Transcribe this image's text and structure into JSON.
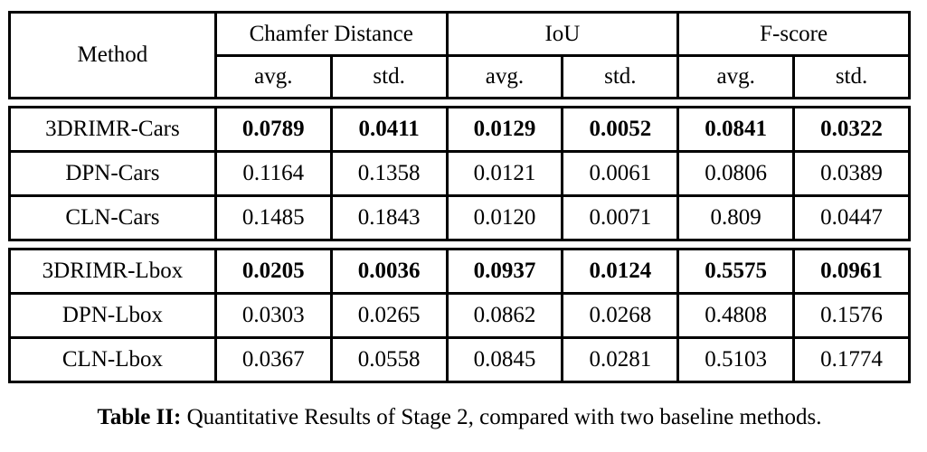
{
  "table": {
    "header": {
      "method_label": "Method",
      "groups": [
        {
          "label": "Chamfer Distance"
        },
        {
          "label": "IoU"
        },
        {
          "label": "F-score"
        }
      ],
      "sub_labels": [
        "avg.",
        "std.",
        "avg.",
        "std.",
        "avg.",
        "std."
      ]
    },
    "groups": [
      {
        "rows": [
          {
            "method": "3DRIMR-Cars",
            "emphasis": true,
            "values": [
              "0.0789",
              "0.0411",
              "0.0129",
              "0.0052",
              "0.0841",
              "0.0322"
            ]
          },
          {
            "method": "DPN-Cars",
            "emphasis": false,
            "values": [
              "0.1164",
              "0.1358",
              "0.0121",
              "0.0061",
              "0.0806",
              "0.0389"
            ]
          },
          {
            "method": "CLN-Cars",
            "emphasis": false,
            "values": [
              "0.1485",
              "0.1843",
              "0.0120",
              "0.0071",
              "0.809",
              "0.0447"
            ]
          }
        ]
      },
      {
        "rows": [
          {
            "method": "3DRIMR-Lbox",
            "emphasis": true,
            "values": [
              "0.0205",
              "0.0036",
              "0.0937",
              "0.0124",
              "0.5575",
              "0.0961"
            ]
          },
          {
            "method": "DPN-Lbox",
            "emphasis": false,
            "values": [
              "0.0303",
              "0.0265",
              "0.0862",
              "0.0268",
              "0.4808",
              "0.1576"
            ]
          },
          {
            "method": "CLN-Lbox",
            "emphasis": false,
            "values": [
              "0.0367",
              "0.0558",
              "0.0845",
              "0.0281",
              "0.5103",
              "0.1774"
            ]
          }
        ]
      }
    ]
  },
  "caption": {
    "label": "Table II:",
    "text": "Quantitative Results of Stage 2, compared with two baseline methods."
  },
  "colors": {
    "border": "#000000",
    "text": "#000000",
    "background": "#ffffff"
  }
}
